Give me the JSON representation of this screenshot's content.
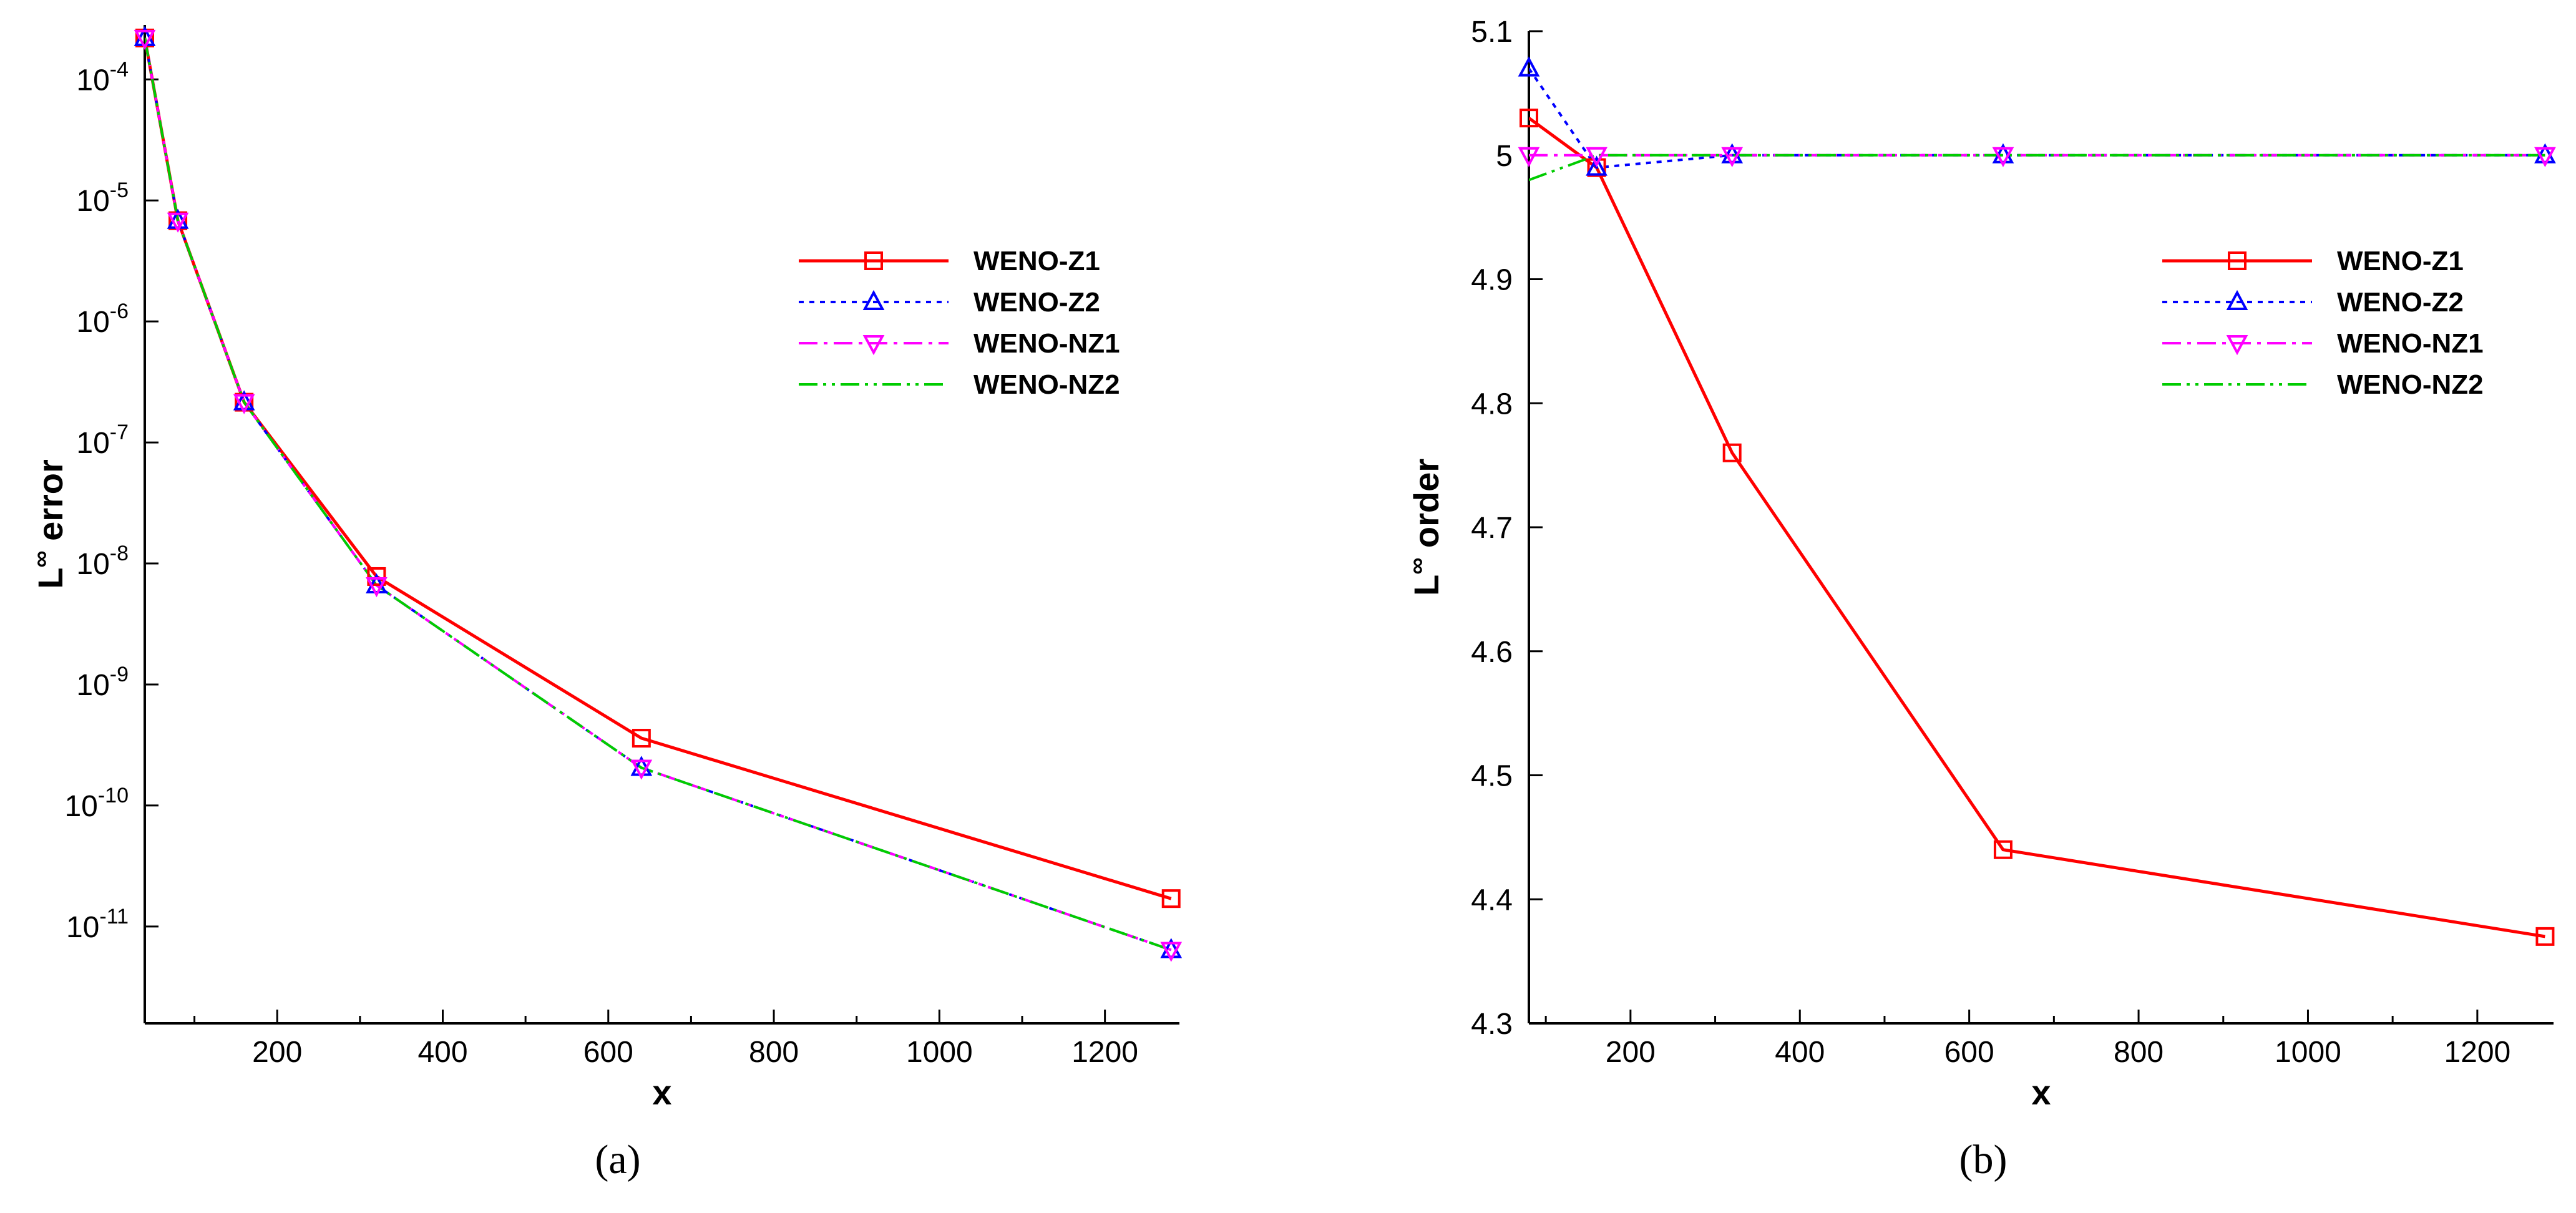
{
  "chart_data": [
    {
      "type": "line",
      "panel": "a",
      "caption": "(a)",
      "xlabel": "x",
      "ylabel": "error",
      "ylabel_prefix": "L",
      "ylabel_superscript": "∞",
      "yscale": "log",
      "xlim": [
        40,
        1290
      ],
      "ylim_log10": [
        -11.8,
        -3.55
      ],
      "xticks": [
        200,
        400,
        600,
        800,
        1000,
        1200
      ],
      "xtick_labels": [
        "200",
        "400",
        "600",
        "800",
        "1000",
        "1200"
      ],
      "yticks_log10": [
        -4,
        -5,
        -6,
        -7,
        -8,
        -9,
        -10,
        -11
      ],
      "ytick_bases": [
        "10",
        "10",
        "10",
        "10",
        "10",
        "10",
        "10",
        "10"
      ],
      "ytick_exponents": [
        "-4",
        "-5",
        "-6",
        "-7",
        "-8",
        "-9",
        "-10",
        "-11"
      ],
      "legend_position": "upper-right",
      "x": [
        40,
        80,
        160,
        320,
        640,
        1280
      ],
      "series": [
        {
          "name": "WENO-Z1",
          "color": "#ff0000",
          "dash": "solid",
          "marker": "square",
          "values": [
            0.00022,
            6.8e-06,
            2.15e-07,
            7.8e-09,
            3.6e-10,
            1.7e-11
          ]
        },
        {
          "name": "WENO-Z2",
          "color": "#0000ff",
          "dash": "dotted",
          "marker": "triangle-up",
          "values": [
            0.00022,
            6.8e-06,
            2.15e-07,
            6.6e-09,
            2.05e-10,
            6.4e-12
          ]
        },
        {
          "name": "WENO-NZ1",
          "color": "#ff00ff",
          "dash": "dashdot",
          "marker": "triangle-down",
          "values": [
            0.00022,
            6.8e-06,
            2.15e-07,
            6.6e-09,
            2.05e-10,
            6.4e-12
          ]
        },
        {
          "name": "WENO-NZ2",
          "color": "#00cc00",
          "dash": "dashdotdot",
          "marker": "none",
          "values": [
            0.00022,
            6.8e-06,
            2.15e-07,
            6.6e-09,
            2.05e-10,
            6.4e-12
          ]
        }
      ]
    },
    {
      "type": "line",
      "panel": "b",
      "caption": "(b)",
      "xlabel": "x",
      "ylabel": "order",
      "ylabel_prefix": "L",
      "ylabel_superscript": "∞",
      "yscale": "linear",
      "xlim": [
        80,
        1290
      ],
      "ylim": [
        4.3,
        5.1
      ],
      "xticks": [
        200,
        400,
        600,
        800,
        1000,
        1200
      ],
      "xtick_labels": [
        "200",
        "400",
        "600",
        "800",
        "1000",
        "1200"
      ],
      "yticks": [
        4.3,
        4.4,
        4.5,
        4.6,
        4.7,
        4.8,
        4.9,
        5.0,
        5.1
      ],
      "ytick_labels": [
        "4.3",
        "4.4",
        "4.5",
        "4.6",
        "4.7",
        "4.8",
        "4.9",
        "5",
        "5.1"
      ],
      "legend_position": "upper-right",
      "x": [
        80,
        160,
        320,
        640,
        1280
      ],
      "series": [
        {
          "name": "WENO-Z1",
          "color": "#ff0000",
          "dash": "solid",
          "marker": "square",
          "values": [
            5.03,
            4.99,
            4.76,
            4.44,
            4.37
          ]
        },
        {
          "name": "WENO-Z2",
          "color": "#0000ff",
          "dash": "dotted",
          "marker": "triangle-up",
          "values": [
            5.07,
            4.99,
            5.0,
            5.0,
            5.0
          ]
        },
        {
          "name": "WENO-NZ1",
          "color": "#ff00ff",
          "dash": "dashdot",
          "marker": "triangle-down",
          "values": [
            5.0,
            5.0,
            5.0,
            5.0,
            5.0
          ]
        },
        {
          "name": "WENO-NZ2",
          "color": "#00cc00",
          "dash": "dashdotdot",
          "marker": "none",
          "values": [
            4.98,
            5.0,
            5.0,
            5.0,
            5.0
          ]
        }
      ]
    }
  ]
}
